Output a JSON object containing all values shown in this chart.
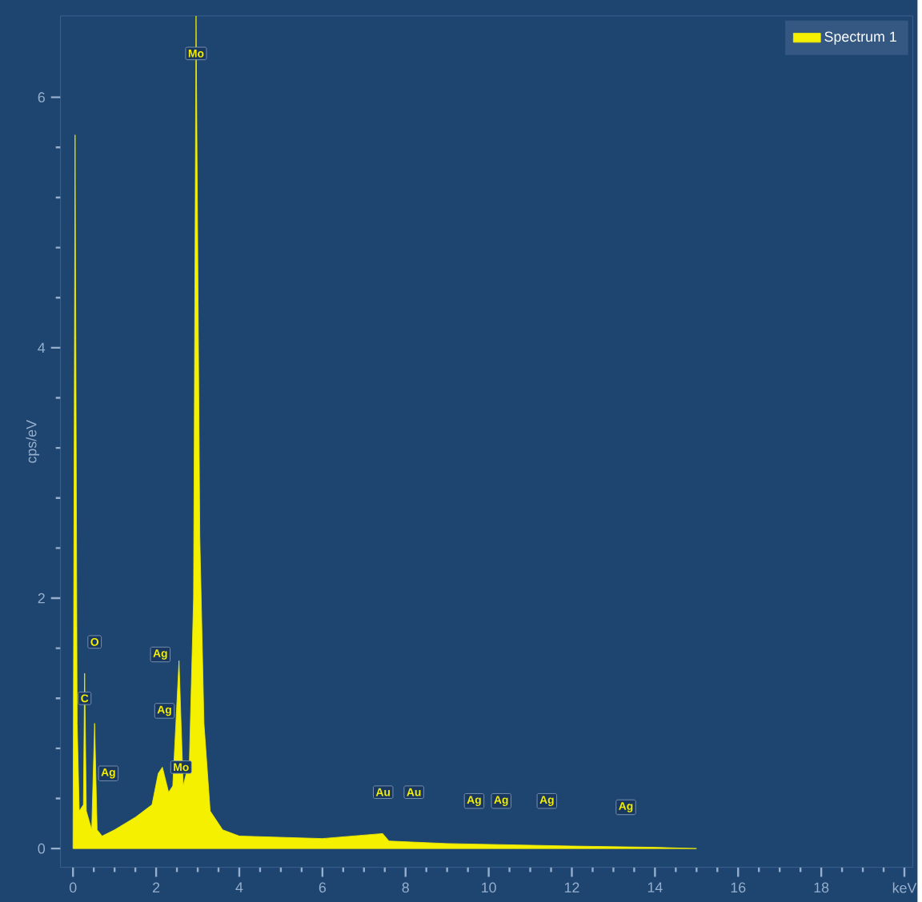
{
  "chart_data": {
    "type": "area",
    "ylabel": "cps/eV",
    "xlim": [
      -0.3,
      20.2
    ],
    "ylim": [
      -0.15,
      6.65
    ],
    "xticks": [
      0,
      2,
      4,
      6,
      8,
      10,
      12,
      14,
      16,
      18,
      {
        "value": 20,
        "label": "keV"
      }
    ],
    "yticks": [
      0,
      2,
      4,
      6
    ],
    "legend": "top right",
    "grid": false,
    "series": [
      {
        "name": "Spectrum 1",
        "color": "#f5f000",
        "x": [
          0,
          0.05,
          0.1,
          0.15,
          0.25,
          0.28,
          0.32,
          0.45,
          0.52,
          0.58,
          0.7,
          1.0,
          1.5,
          1.9,
          2.05,
          2.15,
          2.3,
          2.4,
          2.55,
          2.65,
          2.8,
          2.9,
          2.96,
          3.05,
          3.15,
          3.3,
          3.6,
          4,
          6,
          7.45,
          7.6,
          9,
          12,
          14,
          15
        ],
        "values": [
          0,
          5.7,
          1.0,
          0.3,
          0.35,
          1.4,
          0.3,
          0.15,
          1.0,
          0.15,
          0.1,
          0.15,
          0.25,
          0.35,
          0.6,
          0.65,
          0.45,
          0.5,
          1.5,
          0.5,
          0.7,
          2.0,
          6.65,
          2.5,
          1.0,
          0.3,
          0.15,
          0.1,
          0.08,
          0.12,
          0.06,
          0.04,
          0.02,
          0.01,
          0
        ]
      }
    ],
    "annotations": [
      {
        "text": "C",
        "x": 0.28,
        "y": 1.2
      },
      {
        "text": "O",
        "x": 0.52,
        "y": 1.65
      },
      {
        "text": "Ag",
        "x": 0.85,
        "y": 0.6
      },
      {
        "text": "Ag",
        "x": 2.1,
        "y": 1.55
      },
      {
        "text": "Ag",
        "x": 2.2,
        "y": 1.1
      },
      {
        "text": "Mo",
        "x": 2.6,
        "y": 0.65
      },
      {
        "text": "Mo",
        "x": 2.96,
        "y": 6.35
      },
      {
        "text": "Au",
        "x": 7.46,
        "y": 0.45
      },
      {
        "text": "Au",
        "x": 8.2,
        "y": 0.45
      },
      {
        "text": "Ag",
        "x": 9.65,
        "y": 0.38
      },
      {
        "text": "Ag",
        "x": 10.3,
        "y": 0.38
      },
      {
        "text": "Ag",
        "x": 11.4,
        "y": 0.38
      },
      {
        "text": "Ag",
        "x": 13.3,
        "y": 0.33
      }
    ]
  }
}
